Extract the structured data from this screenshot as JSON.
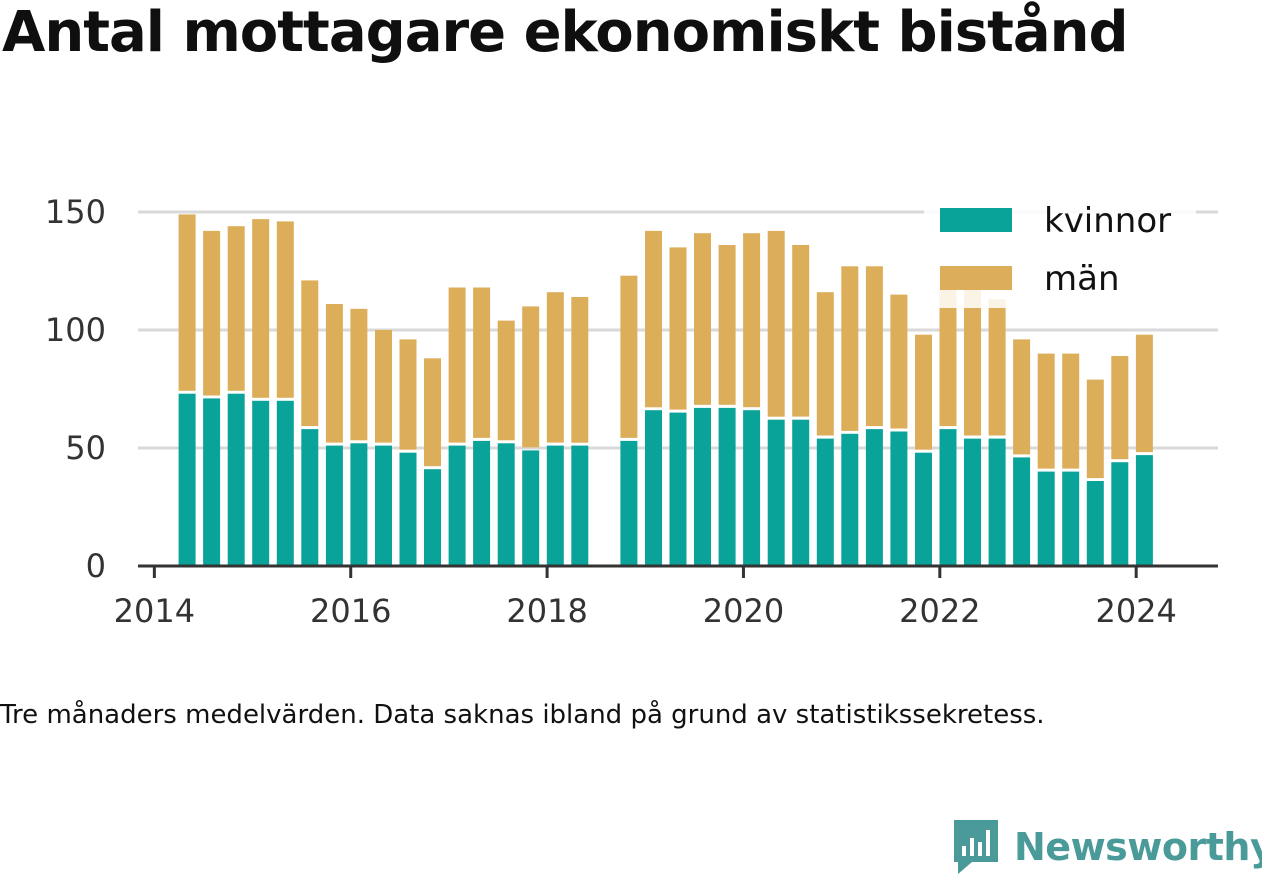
{
  "title": "Antal mottagare ekonomiskt bistånd",
  "caption": "Tre månaders medelvärden. Data saknas ibland på grund av statistikssekretess.",
  "brand": {
    "name": "Newsworthy",
    "icon": "newsworthy-logo-icon",
    "color": "#4a9a9a"
  },
  "chart_data": {
    "type": "bar",
    "stacked": true,
    "title": "",
    "xlabel": "",
    "ylabel": "",
    "ylim": [
      0,
      150
    ],
    "yticks": [
      0,
      50,
      100,
      150
    ],
    "xticks": [
      "2014",
      "2016",
      "2018",
      "2020",
      "2022",
      "2024"
    ],
    "xlim": [
      "2013-11",
      "2024-11"
    ],
    "grid": true,
    "legend_position": "top-right",
    "colors": {
      "kvinnor": "#0aa39a",
      "män": "#dcae5a"
    },
    "x": [
      "2014-05",
      "2014-08",
      "2014-11",
      "2015-02",
      "2015-05",
      "2015-08",
      "2015-11",
      "2016-02",
      "2016-05",
      "2016-08",
      "2016-11",
      "2017-02",
      "2017-05",
      "2017-08",
      "2017-11",
      "2018-02",
      "2018-05",
      "2018-11",
      "2019-02",
      "2019-05",
      "2019-08",
      "2019-11",
      "2020-02",
      "2020-05",
      "2020-08",
      "2020-11",
      "2021-02",
      "2021-05",
      "2021-08",
      "2021-11",
      "2022-02",
      "2022-05",
      "2022-08",
      "2022-11",
      "2023-02",
      "2023-05",
      "2023-08",
      "2023-11",
      "2024-02"
    ],
    "series": [
      {
        "name": "kvinnor",
        "values": [
          73,
          71,
          73,
          70,
          70,
          58,
          51,
          52,
          51,
          48,
          41,
          51,
          53,
          52,
          49,
          51,
          51,
          53,
          66,
          65,
          67,
          67,
          66,
          62,
          62,
          54,
          56,
          58,
          57,
          48,
          58,
          54,
          54,
          46,
          40,
          40,
          36,
          44,
          47
        ]
      },
      {
        "name": "män",
        "values": [
          76,
          71,
          71,
          77,
          76,
          63,
          60,
          57,
          49,
          48,
          47,
          67,
          65,
          52,
          61,
          65,
          63,
          70,
          76,
          70,
          74,
          69,
          75,
          80,
          74,
          62,
          71,
          69,
          58,
          50,
          59,
          64,
          59,
          50,
          50,
          50,
          43,
          45,
          51
        ]
      }
    ]
  }
}
